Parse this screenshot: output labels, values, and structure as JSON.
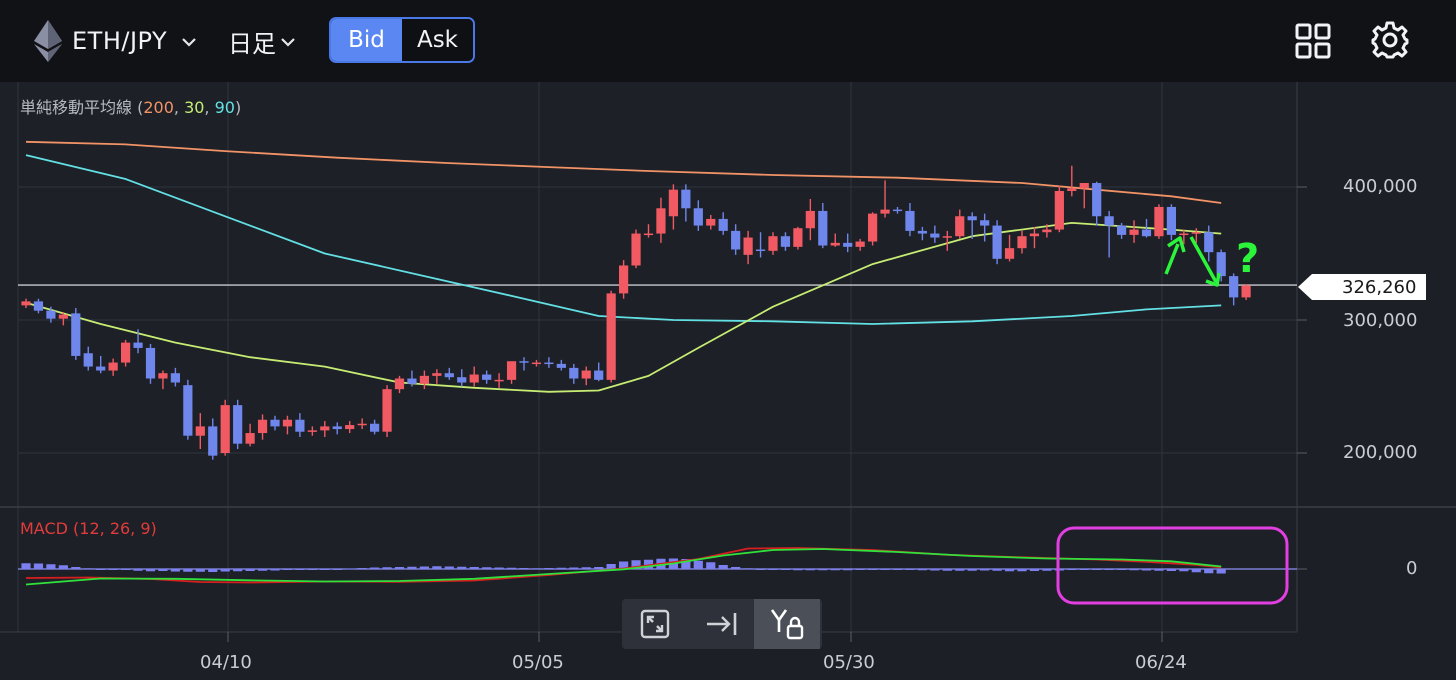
{
  "header": {
    "pair": "ETH/JPY",
    "timeframe": "日足",
    "bid_label": "Bid",
    "ask_label": "Ask"
  },
  "indicators": {
    "sma_prefix": "単純移動平均線 (",
    "sma_200": "200",
    "sma_30": "30",
    "sma_90": "90",
    "sma_suffix": ")",
    "macd_label": "MACD (12, 26, 9)"
  },
  "price_axis": {
    "ticks": [
      "400,000",
      "300,000",
      "200,000"
    ],
    "current_price": "326,260"
  },
  "macd_axis": {
    "zero": "0"
  },
  "time_axis": {
    "ticks": [
      "04/10",
      "05/05",
      "05/30",
      "06/24"
    ]
  },
  "annotation": {
    "question": "?"
  },
  "colors": {
    "bull": "#f25a63",
    "bear": "#6f86ec",
    "sma200": "#f19366",
    "sma30": "#c6ec73",
    "sma90": "#63e0e4",
    "macd_line": "#d71f1f",
    "signal_line": "#30e23c",
    "histogram": "#7b7ff0",
    "annotation_green": "#2bf43a",
    "annotation_magenta": "#e23fe2"
  },
  "chart_data": {
    "type": "candlestick",
    "price_ylim": [
      165000,
      460000
    ],
    "candles_ohlc": [
      [
        311000,
        316000,
        309000,
        314000
      ],
      [
        314000,
        316000,
        305000,
        307000
      ],
      [
        307000,
        310000,
        298000,
        301000
      ],
      [
        301000,
        306000,
        296000,
        304000
      ],
      [
        305000,
        309000,
        270000,
        273000
      ],
      [
        275000,
        280000,
        262000,
        265000
      ],
      [
        265000,
        273000,
        260000,
        262000
      ],
      [
        262000,
        271000,
        258000,
        268000
      ],
      [
        268000,
        285000,
        265000,
        283000
      ],
      [
        283000,
        293000,
        275000,
        279000
      ],
      [
        279000,
        282000,
        252000,
        256000
      ],
      [
        256000,
        262000,
        248000,
        260000
      ],
      [
        260000,
        264000,
        250000,
        253000
      ],
      [
        251000,
        255000,
        210000,
        213000
      ],
      [
        213000,
        230000,
        203000,
        220000
      ],
      [
        220000,
        226000,
        195000,
        198000
      ],
      [
        200000,
        240000,
        198000,
        236000
      ],
      [
        236000,
        240000,
        203000,
        207000
      ],
      [
        207000,
        222000,
        205000,
        215000
      ],
      [
        215000,
        229000,
        210000,
        225000
      ],
      [
        225000,
        228000,
        217000,
        220000
      ],
      [
        220000,
        228000,
        214000,
        225000
      ],
      [
        225000,
        230000,
        212000,
        216000
      ],
      [
        216000,
        220000,
        213000,
        217000
      ],
      [
        217000,
        224000,
        212000,
        220000
      ],
      [
        220000,
        223000,
        214000,
        218000
      ],
      [
        218000,
        224000,
        215000,
        221000
      ],
      [
        221000,
        226000,
        218000,
        222000
      ],
      [
        222000,
        225000,
        214000,
        216000
      ],
      [
        216000,
        251000,
        212000,
        248000
      ],
      [
        248000,
        258000,
        245000,
        256000
      ],
      [
        256000,
        262000,
        250000,
        252000
      ],
      [
        252000,
        262000,
        248000,
        258000
      ],
      [
        258000,
        263000,
        252000,
        260000
      ],
      [
        260000,
        264000,
        255000,
        257000
      ],
      [
        257000,
        263000,
        250000,
        253000
      ],
      [
        253000,
        265000,
        250000,
        259000
      ],
      [
        259000,
        262000,
        252000,
        255000
      ],
      [
        255000,
        260000,
        249000,
        255000
      ],
      [
        255000,
        262000,
        252000,
        269000
      ],
      [
        269000,
        272000,
        262000,
        268000
      ],
      [
        268000,
        270000,
        265000,
        268000
      ],
      [
        268000,
        272000,
        264000,
        267000
      ],
      [
        267000,
        270000,
        262000,
        264000
      ],
      [
        264000,
        267000,
        252000,
        256000
      ],
      [
        256000,
        265000,
        251000,
        262000
      ],
      [
        262000,
        268000,
        254000,
        255000
      ],
      [
        255000,
        322000,
        253000,
        320000
      ],
      [
        320000,
        345000,
        316000,
        341000
      ],
      [
        341000,
        368000,
        339000,
        365000
      ],
      [
        365000,
        372000,
        362000,
        365000
      ],
      [
        365000,
        392000,
        358000,
        384000
      ],
      [
        378000,
        402000,
        368000,
        398000
      ],
      [
        398000,
        402000,
        374000,
        384000
      ],
      [
        384000,
        390000,
        367000,
        371000
      ],
      [
        371000,
        379000,
        368000,
        376000
      ],
      [
        376000,
        381000,
        364000,
        367000
      ],
      [
        367000,
        372000,
        349000,
        353000
      ],
      [
        349000,
        367000,
        342000,
        362000
      ],
      [
        353000,
        366000,
        347000,
        352000
      ],
      [
        352000,
        366000,
        349000,
        363000
      ],
      [
        363000,
        366000,
        352000,
        355000
      ],
      [
        355000,
        370000,
        353000,
        369000
      ],
      [
        369000,
        391000,
        360000,
        382000
      ],
      [
        382000,
        388000,
        354000,
        356000
      ],
      [
        356000,
        365000,
        355000,
        358000
      ],
      [
        358000,
        365000,
        351000,
        355000
      ],
      [
        355000,
        361000,
        352000,
        359000
      ],
      [
        359000,
        381000,
        356000,
        380000
      ],
      [
        380000,
        405000,
        377000,
        383000
      ],
      [
        383000,
        385000,
        380000,
        382000
      ],
      [
        382000,
        388000,
        363000,
        367000
      ],
      [
        367000,
        370000,
        360000,
        365000
      ],
      [
        365000,
        371000,
        358000,
        362000
      ],
      [
        362000,
        367000,
        352000,
        363000
      ],
      [
        363000,
        383000,
        361000,
        378000
      ],
      [
        378000,
        381000,
        361000,
        375000
      ],
      [
        375000,
        380000,
        359000,
        371000
      ],
      [
        371000,
        375000,
        342000,
        346000
      ],
      [
        346000,
        364000,
        344000,
        354000
      ],
      [
        354000,
        367000,
        350000,
        363000
      ],
      [
        363000,
        370000,
        354000,
        365000
      ],
      [
        366000,
        372000,
        362000,
        368000
      ],
      [
        368000,
        401000,
        366000,
        397000
      ],
      [
        397000,
        416000,
        393000,
        399000
      ],
      [
        399000,
        403000,
        384000,
        403000
      ],
      [
        403000,
        404000,
        371000,
        378000
      ],
      [
        378000,
        382000,
        347000,
        371000
      ],
      [
        371000,
        373000,
        361000,
        364000
      ],
      [
        364000,
        375000,
        358000,
        368000
      ],
      [
        368000,
        376000,
        362000,
        363000
      ],
      [
        363000,
        387000,
        361000,
        385000
      ],
      [
        385000,
        387000,
        360000,
        364000
      ],
      [
        364000,
        368000,
        357000,
        365000
      ],
      [
        365000,
        369000,
        358000,
        366000
      ],
      [
        366000,
        371000,
        344000,
        351000
      ],
      [
        351000,
        353000,
        329000,
        333000
      ],
      [
        333000,
        335000,
        311000,
        317000
      ],
      [
        317000,
        327000,
        315000,
        326000
      ]
    ],
    "sma200": [
      [
        0,
        434000
      ],
      [
        8,
        432000
      ],
      [
        16,
        427000
      ],
      [
        25,
        422000
      ],
      [
        34,
        418000
      ],
      [
        42,
        415000
      ],
      [
        50,
        412000
      ],
      [
        60,
        409000
      ],
      [
        70,
        407000
      ],
      [
        80,
        403000
      ],
      [
        86,
        398000
      ],
      [
        92,
        393000
      ],
      [
        96,
        388000
      ]
    ],
    "sma90": [
      [
        0,
        424000
      ],
      [
        8,
        406000
      ],
      [
        16,
        378000
      ],
      [
        24,
        350000
      ],
      [
        32,
        333000
      ],
      [
        40,
        316000
      ],
      [
        46,
        303000
      ],
      [
        52,
        300000
      ],
      [
        60,
        299000
      ],
      [
        68,
        297000
      ],
      [
        76,
        299000
      ],
      [
        84,
        303000
      ],
      [
        90,
        308000
      ],
      [
        96,
        311000
      ]
    ],
    "sma30": [
      [
        0,
        313000
      ],
      [
        6,
        297000
      ],
      [
        12,
        283000
      ],
      [
        18,
        272000
      ],
      [
        24,
        265000
      ],
      [
        30,
        253000
      ],
      [
        36,
        249000
      ],
      [
        42,
        246000
      ],
      [
        46,
        247000
      ],
      [
        50,
        258000
      ],
      [
        54,
        279000
      ],
      [
        60,
        310000
      ],
      [
        68,
        342000
      ],
      [
        76,
        363000
      ],
      [
        84,
        373000
      ],
      [
        92,
        368000
      ],
      [
        96,
        365000
      ]
    ],
    "macd_histogram": [
      2300,
      2200,
      1900,
      1500,
      800,
      300,
      0,
      -200,
      -400,
      -700,
      -900,
      -800,
      -1000,
      -1100,
      -1100,
      -1200,
      -1000,
      -900,
      -800,
      -700,
      -600,
      -400,
      -300,
      -200,
      -100,
      0,
      200,
      400,
      600,
      700,
      800,
      900,
      1000,
      1100,
      1000,
      900,
      800,
      700,
      600,
      500,
      400,
      300,
      400,
      500,
      600,
      700,
      800,
      2000,
      3000,
      3500,
      3700,
      4100,
      4200,
      4000,
      3300,
      2700,
      1600,
      800,
      300,
      0,
      -300,
      -400,
      -500,
      -500,
      -500,
      -500,
      -500,
      -400,
      -400,
      -400,
      -300,
      -400,
      -500,
      -600,
      -700,
      -700,
      -700,
      -600,
      -700,
      -900,
      -900,
      -800,
      -700,
      -600,
      -400,
      -300,
      -200,
      -300,
      -400,
      -500,
      -600,
      -700,
      -800,
      -900,
      -1300,
      -1700,
      -1800
    ],
    "macd_line": [
      [
        0,
        -3600
      ],
      [
        5,
        -3400
      ],
      [
        10,
        -4000
      ],
      [
        14,
        -5200
      ],
      [
        18,
        -5400
      ],
      [
        24,
        -5000
      ],
      [
        30,
        -5100
      ],
      [
        36,
        -4600
      ],
      [
        42,
        -2400
      ],
      [
        48,
        200
      ],
      [
        54,
        4000
      ],
      [
        58,
        8200
      ],
      [
        62,
        8400
      ],
      [
        68,
        7600
      ],
      [
        74,
        5700
      ],
      [
        80,
        4700
      ],
      [
        86,
        3800
      ],
      [
        90,
        2900
      ],
      [
        94,
        1700
      ],
      [
        96,
        600
      ]
    ],
    "signal_line": [
      [
        0,
        -6200
      ],
      [
        6,
        -3800
      ],
      [
        12,
        -3900
      ],
      [
        18,
        -4500
      ],
      [
        24,
        -5000
      ],
      [
        30,
        -4800
      ],
      [
        36,
        -3900
      ],
      [
        42,
        -2000
      ],
      [
        48,
        -100
      ],
      [
        52,
        2200
      ],
      [
        56,
        5400
      ],
      [
        60,
        7600
      ],
      [
        64,
        8000
      ],
      [
        70,
        6800
      ],
      [
        76,
        5200
      ],
      [
        82,
        4200
      ],
      [
        88,
        3800
      ],
      [
        92,
        3100
      ],
      [
        96,
        1000
      ]
    ],
    "macd_ylim": [
      -11000,
      11000
    ]
  }
}
